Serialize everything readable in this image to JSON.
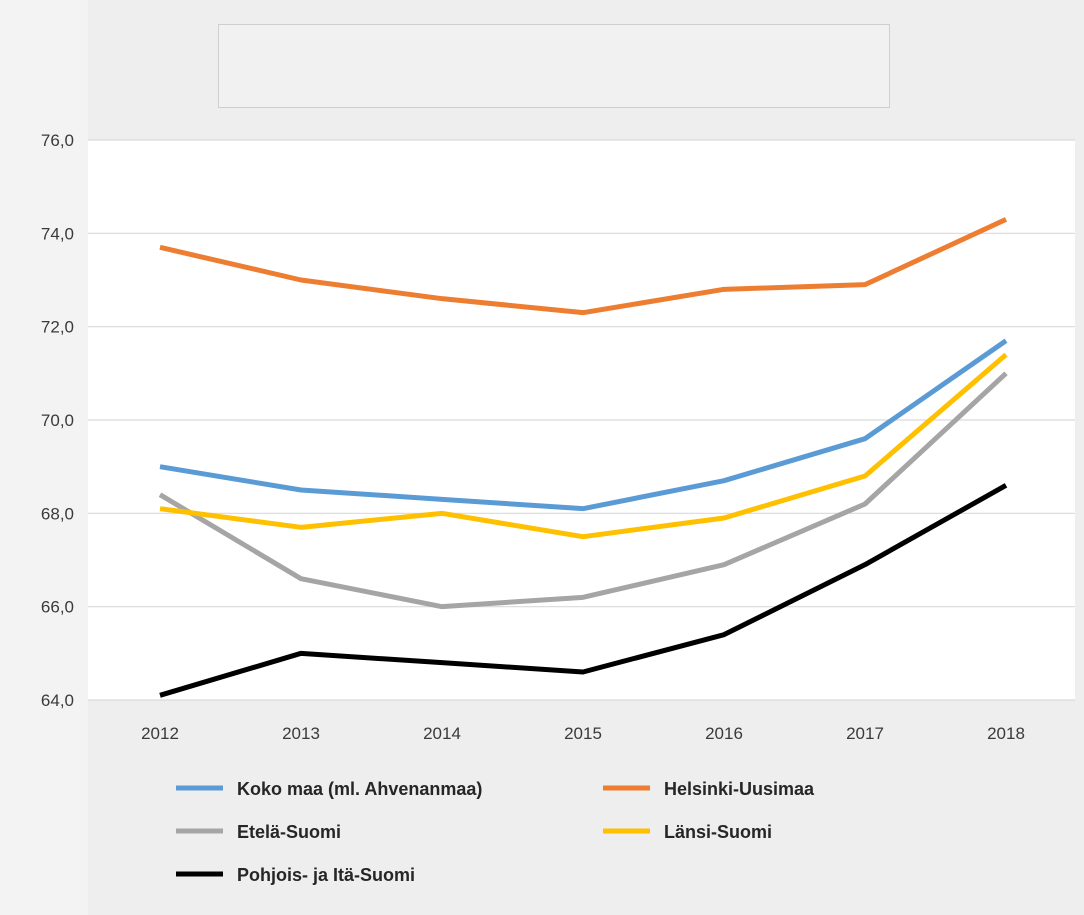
{
  "chart_data": {
    "type": "line",
    "title": "",
    "xlabel": "",
    "ylabel": "",
    "categories": [
      "2012",
      "2013",
      "2014",
      "2015",
      "2016",
      "2017",
      "2018"
    ],
    "ylim": [
      64.0,
      76.0
    ],
    "yticks": [
      "64,0",
      "66,0",
      "68,0",
      "70,0",
      "72,0",
      "74,0",
      "76,0"
    ],
    "grid": true,
    "legend_position": "bottom",
    "series": [
      {
        "name": "Koko maa (ml. Ahvenanmaa)",
        "color": "#5b9bd5",
        "values": [
          69.0,
          68.5,
          68.3,
          68.1,
          68.7,
          69.6,
          71.7
        ]
      },
      {
        "name": "Helsinki-Uusimaa",
        "color": "#ed7d31",
        "values": [
          73.7,
          73.0,
          72.6,
          72.3,
          72.8,
          72.9,
          74.3
        ]
      },
      {
        "name": "Etelä-Suomi",
        "color": "#a5a5a5",
        "values": [
          68.4,
          66.6,
          66.0,
          66.2,
          66.9,
          68.2,
          71.0
        ]
      },
      {
        "name": "Länsi-Suomi",
        "color": "#ffc000",
        "values": [
          68.1,
          67.7,
          68.0,
          67.5,
          67.9,
          68.8,
          71.4
        ]
      },
      {
        "name": "Pohjois- ja Itä-Suomi",
        "color": "#000000",
        "values": [
          64.1,
          65.0,
          64.8,
          64.6,
          65.4,
          66.9,
          68.6
        ]
      }
    ]
  }
}
